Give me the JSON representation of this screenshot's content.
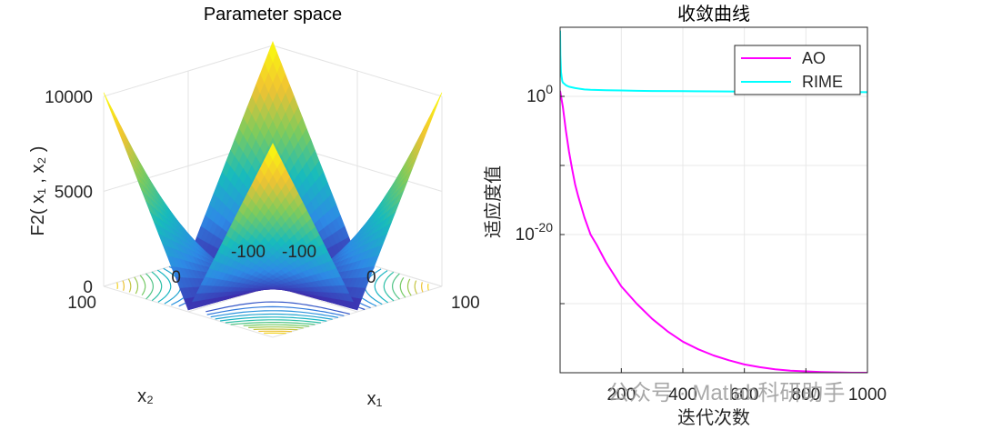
{
  "chart_data": [
    {
      "type": "surface3d",
      "title": "Parameter space",
      "zlabel": "F2( x₁ , x₂ )",
      "xlabel": "x₁",
      "ylabel": "x₂",
      "x_range": [
        -100,
        100
      ],
      "y_range": [
        -100,
        100
      ],
      "z_range": [
        0,
        10000
      ],
      "z_ticks": [
        "10000",
        "5000",
        "0"
      ],
      "x_ticks": [
        "-100",
        "0",
        "100"
      ],
      "y_ticks": [
        "-100",
        "0",
        "100"
      ],
      "function": "|x1| + |x2| + |x1|*|x2|",
      "colormap": [
        "#3e26a8",
        "#2e8ae6",
        "#17bbbd",
        "#7dcb5d",
        "#f1c232",
        "#f9fb0e"
      ],
      "contour_levels": 12
    },
    {
      "type": "line",
      "title": "收敛曲线",
      "xlabel": "迭代次数",
      "ylabel": "适应度值",
      "yscale": "log",
      "xlim": [
        1,
        1000
      ],
      "ylim_log10": [
        -40,
        10
      ],
      "x_ticks": [
        "200",
        "400",
        "600",
        "800",
        "1000"
      ],
      "y_ticks": [
        {
          "base": "10",
          "exp": "0"
        },
        {
          "base": "10",
          "exp": "-20"
        }
      ],
      "grid": true,
      "legend": "top-right",
      "series": [
        {
          "name": "AO",
          "color": "#ff00ff",
          "x": [
            1,
            10,
            20,
            30,
            40,
            50,
            60,
            80,
            100,
            120,
            150,
            200,
            250,
            300,
            350,
            400,
            450,
            500,
            550,
            600,
            650,
            700,
            750,
            800,
            850,
            900,
            950,
            1000
          ],
          "log10_y": [
            0.8,
            -1.5,
            -5.0,
            -8.0,
            -10.5,
            -12.8,
            -14.5,
            -17.5,
            -20.0,
            -21.5,
            -24.0,
            -27.5,
            -30.0,
            -32.2,
            -34.0,
            -35.5,
            -36.6,
            -37.5,
            -38.2,
            -38.8,
            -39.2,
            -39.5,
            -39.7,
            -39.8,
            -39.9,
            -39.95,
            -40.0,
            -40.0
          ]
        },
        {
          "name": "RIME",
          "color": "#00ffff",
          "x": [
            1,
            2,
            4,
            6,
            8,
            10,
            15,
            20,
            30,
            50,
            80,
            100,
            150,
            200,
            250,
            300,
            400,
            500,
            600,
            700,
            800,
            900,
            1000
          ],
          "log10_y": [
            9.5,
            6.0,
            3.5,
            2.8,
            2.2,
            2.0,
            1.8,
            1.6,
            1.4,
            1.2,
            1.0,
            0.95,
            0.9,
            0.85,
            0.8,
            0.78,
            0.75,
            0.72,
            0.7,
            0.68,
            0.66,
            0.64,
            0.6
          ]
        }
      ]
    }
  ],
  "watermark": "公众号 · Matlab科研助手"
}
